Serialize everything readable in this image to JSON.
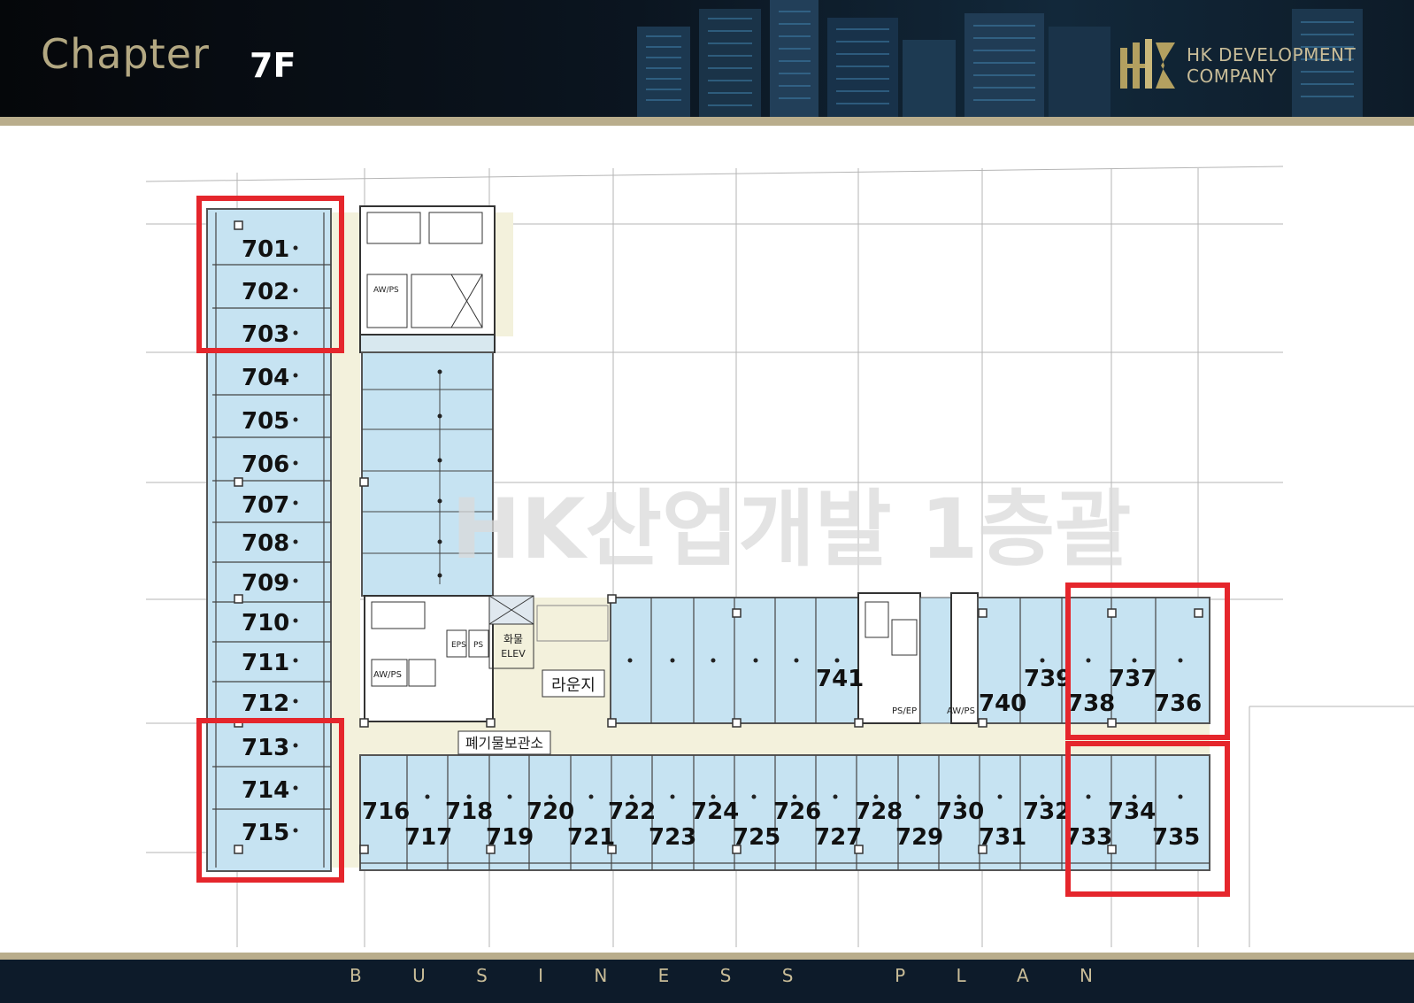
{
  "header": {
    "chapter": "Chapter",
    "floor": "7F",
    "company_line1": "HK DEVELOPMENT",
    "company_line2": "COMPANY",
    "logo_icon": "hk-monogram-icon"
  },
  "watermark": "HK산업개발 1층괄",
  "rooms": {
    "lounge": "라운지",
    "waste_storage": "폐기물보관소",
    "freight_elevator_1": "화물",
    "freight_elevator_2": "ELEV",
    "aw_ps_1": "AW/PS",
    "aw_ps_2": "AW/PS",
    "aw_ps_3": "AW/PS",
    "ps_ep": "PS/EP",
    "eps": "EPS",
    "ps": "PS"
  },
  "units": {
    "west_wing": [
      "701",
      "702",
      "703",
      "704",
      "705",
      "706",
      "707",
      "708",
      "709",
      "710",
      "711",
      "712",
      "713",
      "714",
      "715"
    ],
    "south_row_upper": [
      "716",
      "718",
      "720",
      "722",
      "724",
      "726",
      "728",
      "730",
      "732",
      "734"
    ],
    "south_row_lower": [
      "717",
      "719",
      "721",
      "723",
      "725",
      "727",
      "729",
      "731",
      "733",
      "735"
    ],
    "east_wing_upper": [
      "741",
      "739",
      "737"
    ],
    "east_wing_lower": [
      "740",
      "738",
      "736"
    ]
  },
  "highlighted_units": [
    "701",
    "702",
    "703",
    "713",
    "714",
    "715",
    "733",
    "734",
    "735",
    "736",
    "737",
    "738"
  ],
  "colors": {
    "unit_fill": "#c6e3f2",
    "corridor_fill": "#f3f1dc",
    "highlight": "#e5262c",
    "gold": "#b9ad8c",
    "navy": "#0d1b2a"
  },
  "footer": {
    "letters": [
      "B",
      "U",
      "S",
      "I",
      "N",
      "E",
      "S",
      "S",
      "",
      "P",
      "L",
      "A",
      "N"
    ]
  }
}
